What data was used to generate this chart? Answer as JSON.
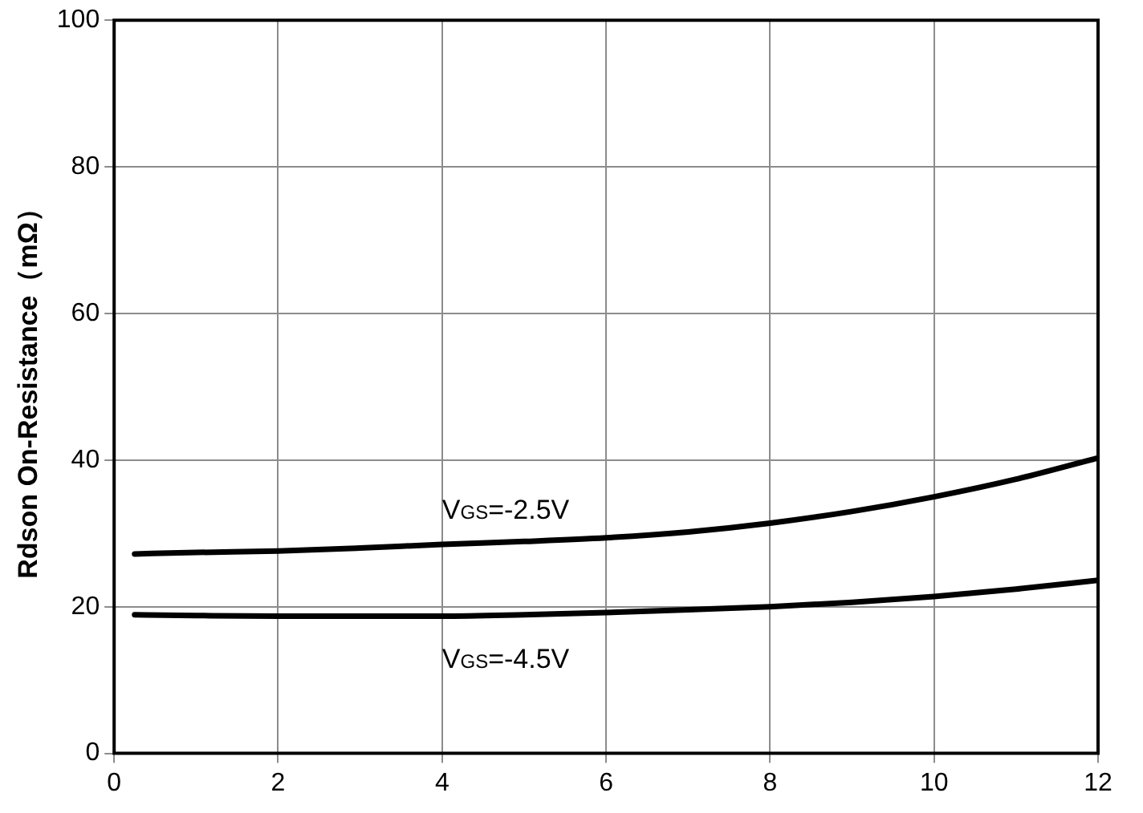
{
  "chart_data": {
    "type": "line",
    "ylabel": "Rdson On-Resistance（mΩ）",
    "x": [
      0.25,
      1,
      2,
      3,
      4,
      5,
      6,
      7,
      8,
      9,
      10,
      11,
      12
    ],
    "series": [
      {
        "name": "V$_{GS}$=-2.5V",
        "color": "#000000",
        "values": [
          27.2,
          27.4,
          27.6,
          28,
          28.5,
          28.9,
          29.4,
          30.2,
          31.4,
          33,
          35,
          37.4,
          40.3
        ]
      },
      {
        "name": "V$_{GS}$=-4.5V",
        "color": "#000000",
        "values": [
          18.9,
          18.8,
          18.7,
          18.7,
          18.7,
          18.9,
          19.2,
          19.6,
          20,
          20.6,
          21.4,
          22.4,
          23.6
        ]
      }
    ],
    "xlim": [
      0,
      12
    ],
    "xticks": [
      0,
      2,
      4,
      6,
      8,
      10,
      12
    ],
    "ylim": [
      0,
      100
    ],
    "yticks": [
      0,
      20,
      40,
      60,
      80,
      100
    ],
    "grid": true,
    "legend": false,
    "marker": "none",
    "line_style": "solid"
  }
}
